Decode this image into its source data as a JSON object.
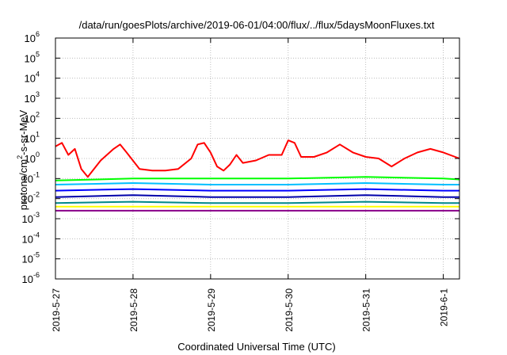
{
  "chart_data": {
    "type": "line",
    "title": "/data/run/goesPlots/archive/2019-06-01/04:00/flux/../flux/5daysMoonFluxes.txt",
    "xlabel": "Coordinated Universal Time (UTC)",
    "ylabel": {
      "base": "protons/cm",
      "sup": "2",
      "rest": "-s-sr-MeV"
    },
    "yscale": "log",
    "ylim": [
      1e-06,
      1000000.0
    ],
    "yticks": [
      {
        "exp": "-6"
      },
      {
        "exp": "-5"
      },
      {
        "exp": "-4"
      },
      {
        "exp": "-3"
      },
      {
        "exp": "-2"
      },
      {
        "exp": "-1"
      },
      {
        "exp": "0"
      },
      {
        "exp": "1"
      },
      {
        "exp": "2"
      },
      {
        "exp": "3"
      },
      {
        "exp": "4"
      },
      {
        "exp": "5"
      },
      {
        "exp": "6"
      }
    ],
    "xlim": [
      "2019-05-27",
      "2019-06-01 05:00"
    ],
    "xticks": [
      "2019-5-27",
      "2019-5-28",
      "2019-5-29",
      "2019-5-30",
      "2019-5-31",
      "2019-6-1"
    ],
    "grid": true,
    "series": [
      {
        "color": "#ff0000",
        "x": [
          "2019-05-27 00:00",
          "2019-05-27 02:00",
          "2019-05-27 04:00",
          "2019-05-27 06:00",
          "2019-05-27 08:00",
          "2019-05-27 10:00",
          "2019-05-27 14:00",
          "2019-05-27 18:00",
          "2019-05-27 20:00",
          "2019-05-27 22:00",
          "2019-05-28 02:00",
          "2019-05-28 06:00",
          "2019-05-28 10:00",
          "2019-05-28 14:00",
          "2019-05-28 18:00",
          "2019-05-28 20:00",
          "2019-05-28 22:00",
          "2019-05-29 00:00",
          "2019-05-29 02:00",
          "2019-05-29 04:00",
          "2019-05-29 06:00",
          "2019-05-29 08:00",
          "2019-05-29 10:00",
          "2019-05-29 14:00",
          "2019-05-29 18:00",
          "2019-05-29 22:00",
          "2019-05-30 00:00",
          "2019-05-30 02:00",
          "2019-05-30 04:00",
          "2019-05-30 08:00",
          "2019-05-30 12:00",
          "2019-05-30 16:00",
          "2019-05-30 20:00",
          "2019-05-31 00:00",
          "2019-05-31 04:00",
          "2019-05-31 08:00",
          "2019-05-31 12:00",
          "2019-05-31 16:00",
          "2019-05-31 20:00",
          "2019-06-01 00:00",
          "2019-06-01 05:00"
        ],
        "values": [
          4,
          6,
          1.5,
          3,
          0.3,
          0.12,
          0.8,
          3,
          5,
          2,
          0.3,
          0.25,
          0.25,
          0.3,
          1,
          5,
          6,
          2,
          0.4,
          0.25,
          0.5,
          1.5,
          0.6,
          0.8,
          1.5,
          1.5,
          8,
          6,
          1.2,
          1.2,
          2,
          5,
          2,
          1.2,
          1,
          0.4,
          1,
          2,
          3,
          2,
          1
        ]
      },
      {
        "color": "#00ff00",
        "x": [
          "2019-05-27 00:00",
          "2019-05-28 00:00",
          "2019-05-29 00:00",
          "2019-05-30 00:00",
          "2019-05-31 00:00",
          "2019-06-01 00:00",
          "2019-06-01 05:00"
        ],
        "values": [
          0.08,
          0.1,
          0.1,
          0.1,
          0.12,
          0.1,
          0.09
        ]
      },
      {
        "color": "#00bfff",
        "x": [
          "2019-05-27 00:00",
          "2019-05-28 00:00",
          "2019-05-29 00:00",
          "2019-05-30 00:00",
          "2019-05-31 00:00",
          "2019-06-01 00:00",
          "2019-06-01 05:00"
        ],
        "values": [
          0.05,
          0.06,
          0.05,
          0.05,
          0.06,
          0.05,
          0.05
        ]
      },
      {
        "color": "#0000ff",
        "x": [
          "2019-05-27 00:00",
          "2019-05-28 00:00",
          "2019-05-29 00:00",
          "2019-05-30 00:00",
          "2019-05-31 00:00",
          "2019-06-01 00:00",
          "2019-06-01 05:00"
        ],
        "values": [
          0.025,
          0.03,
          0.025,
          0.025,
          0.03,
          0.025,
          0.025
        ]
      },
      {
        "color": "#0000aa",
        "x": [
          "2019-05-27 00:00",
          "2019-05-28 00:00",
          "2019-05-29 00:00",
          "2019-05-30 00:00",
          "2019-05-31 00:00",
          "2019-06-01 00:00",
          "2019-06-01 05:00"
        ],
        "values": [
          0.012,
          0.015,
          0.012,
          0.012,
          0.015,
          0.012,
          0.012
        ]
      },
      {
        "color": "#008888",
        "x": [
          "2019-05-27 00:00",
          "2019-05-28 00:00",
          "2019-05-29 00:00",
          "2019-05-30 00:00",
          "2019-05-31 00:00",
          "2019-06-01 00:00",
          "2019-06-01 05:00"
        ],
        "values": [
          0.006,
          0.007,
          0.006,
          0.006,
          0.007,
          0.006,
          0.006
        ]
      },
      {
        "color": "#ffff00",
        "x": [
          "2019-05-27 00:00",
          "2019-05-28 00:00",
          "2019-05-29 00:00",
          "2019-05-30 00:00",
          "2019-05-31 00:00",
          "2019-06-01 00:00",
          "2019-06-01 05:00"
        ],
        "values": [
          0.004,
          0.004,
          0.004,
          0.004,
          0.004,
          0.004,
          0.004
        ]
      },
      {
        "color": "#880088",
        "x": [
          "2019-05-27 00:00",
          "2019-05-28 00:00",
          "2019-05-29 00:00",
          "2019-05-30 00:00",
          "2019-05-31 00:00",
          "2019-06-01 00:00",
          "2019-06-01 05:00"
        ],
        "values": [
          0.0025,
          0.0025,
          0.0025,
          0.0025,
          0.0025,
          0.0025,
          0.0025
        ]
      }
    ]
  }
}
